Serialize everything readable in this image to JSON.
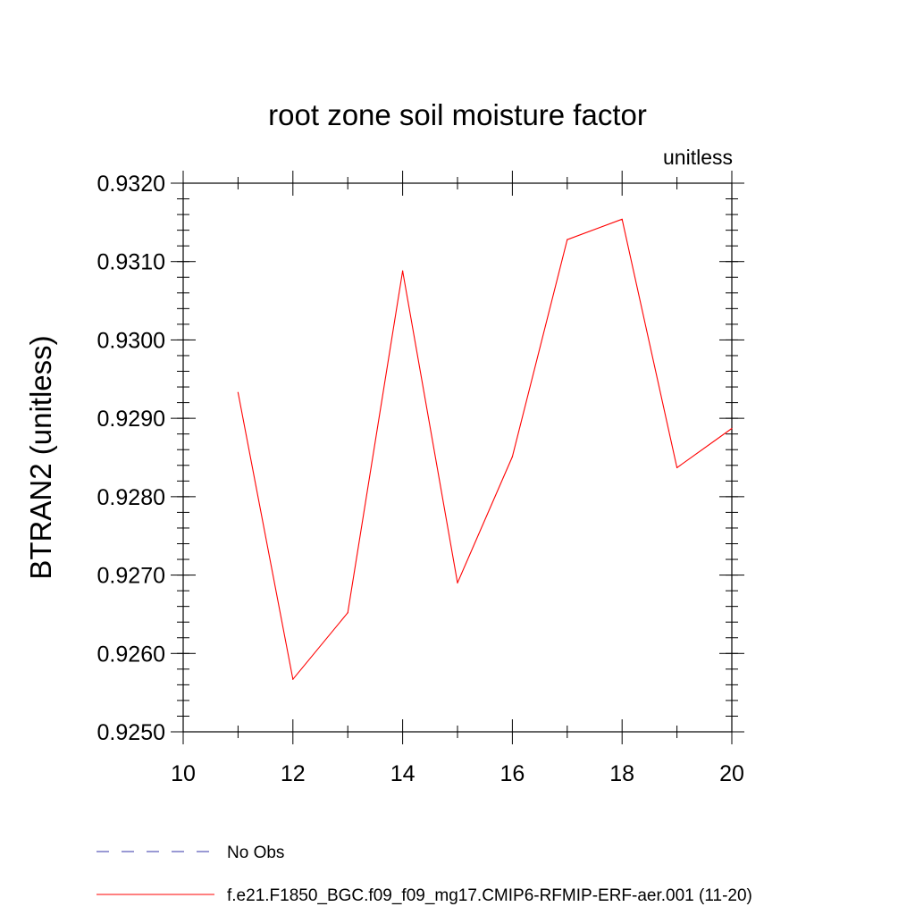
{
  "chart_data": {
    "type": "line",
    "title": "root zone soil moisture factor",
    "units_label": "unitless",
    "ylabel": "BTRAN2  (unitless)",
    "xlabel": "",
    "xlim": [
      10,
      20
    ],
    "ylim": [
      0.925,
      0.932
    ],
    "x_ticks": [
      10,
      12,
      14,
      16,
      18,
      20
    ],
    "x_tick_labels": [
      "10",
      "12",
      "14",
      "16",
      "18",
      "20"
    ],
    "y_ticks": [
      0.925,
      0.926,
      0.927,
      0.928,
      0.929,
      0.93,
      0.931,
      0.932
    ],
    "y_tick_labels": [
      "0.9250",
      "0.9260",
      "0.9270",
      "0.9280",
      "0.9290",
      "0.9300",
      "0.9310",
      "0.9320"
    ],
    "grid": false,
    "legend_position": "bottom",
    "series": [
      {
        "name": "f.e21.F1850_BGC.f09_f09_mg17.CMIP6-RFMIP-ERF-aer.001 (11-20)",
        "color": "#ff0000",
        "style": "solid",
        "x": [
          11,
          12,
          13,
          14,
          15,
          16,
          17,
          18,
          19,
          20
        ],
        "y": [
          0.92933,
          0.92567,
          0.92652,
          0.93088,
          0.9269,
          0.92851,
          0.93128,
          0.93154,
          0.92837,
          0.92887
        ]
      }
    ],
    "legend": [
      {
        "label": "No Obs",
        "color": "#3333aa",
        "style": "dashed"
      },
      {
        "label": "f.e21.F1850_BGC.f09_f09_mg17.CMIP6-RFMIP-ERF-aer.001 (11-20)",
        "color": "#ff0000",
        "style": "solid"
      }
    ]
  }
}
